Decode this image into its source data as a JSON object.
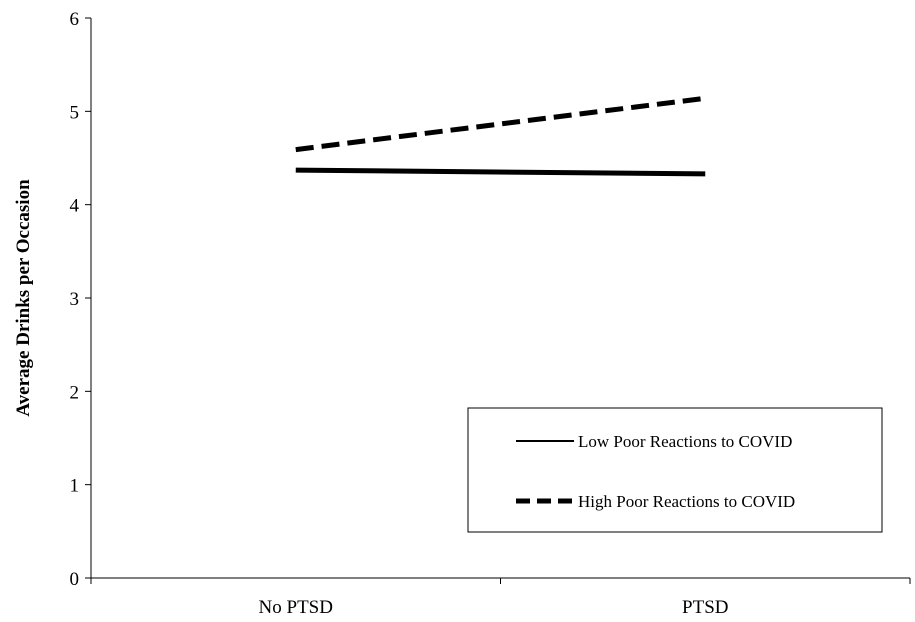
{
  "chart_data": {
    "type": "line",
    "title": "",
    "xlabel": "",
    "ylabel": "Average Drinks per Occasion",
    "categories": [
      "No PTSD",
      "PTSD"
    ],
    "ylim": [
      0,
      6
    ],
    "yticks": [
      0,
      1,
      2,
      3,
      4,
      5,
      6
    ],
    "grid": false,
    "legend_position": "bottom-right",
    "series": [
      {
        "name": "Low Poor Reactions to COVID",
        "values": [
          4.37,
          4.33
        ],
        "style": "solid",
        "color": "#000000"
      },
      {
        "name": "High Poor Reactions to COVID",
        "values": [
          4.59,
          5.14
        ],
        "style": "dashed",
        "color": "#000000"
      }
    ]
  }
}
